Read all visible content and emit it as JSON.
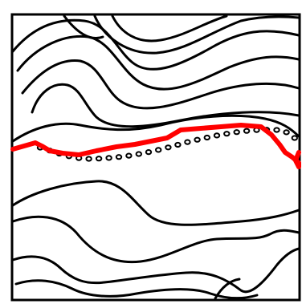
{
  "figure": {
    "background": "#ffffff",
    "contour_color": "#000000",
    "highlight_color": "#ff0000",
    "elements": [
      "frame",
      "contour-lines",
      "dotted-boundary",
      "red-trace"
    ]
  }
}
